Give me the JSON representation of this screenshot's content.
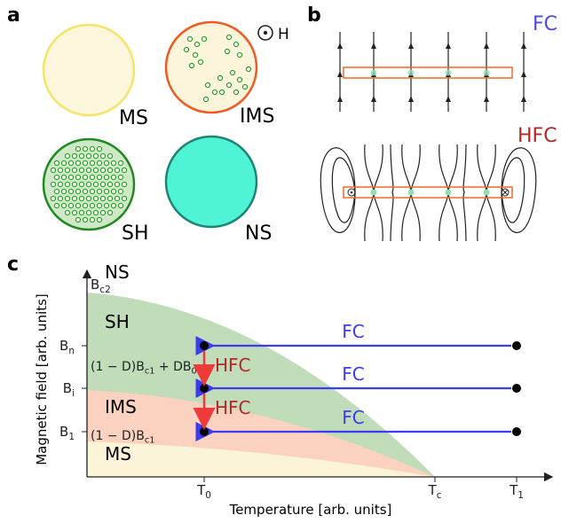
{
  "panels": {
    "a": {
      "label": "a",
      "field": "H",
      "states": [
        "MS",
        "IMS",
        "SH",
        "NS"
      ]
    },
    "b": {
      "label": "b",
      "modes": [
        "FC",
        "HFC"
      ]
    },
    "c": {
      "label": "c",
      "x_axis_label": "Temperature [arb. units]",
      "y_axis_label": "Magnetic field  [arb. units]",
      "x_ticks": [
        [
          "T",
          "0"
        ],
        [
          "T",
          "c"
        ],
        [
          "T",
          "1"
        ]
      ],
      "y_ticks": [
        [
          "B",
          "n"
        ],
        [
          "B",
          "i"
        ],
        [
          "B",
          "1"
        ]
      ],
      "top_tick": [
        "B",
        "c2"
      ],
      "regions": [
        "NS",
        "SH",
        "IMS",
        "MS"
      ],
      "field_annotations": [
        [
          "(1 − D)B",
          "c1",
          " + DB",
          "0"
        ],
        [
          "(1 − D)B",
          "c1"
        ]
      ],
      "fc_arrows": [
        "FC",
        "FC",
        "FC"
      ],
      "hfc_steps": [
        "HFC",
        "HFC"
      ]
    }
  }
}
